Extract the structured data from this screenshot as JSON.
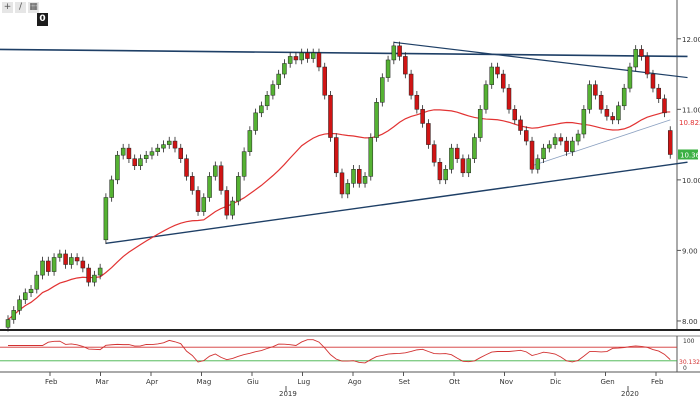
{
  "toolbar": {
    "buttons": [
      {
        "name": "add-icon",
        "glyph": "+"
      },
      {
        "name": "draw-icon",
        "glyph": "/"
      },
      {
        "name": "grid-icon",
        "glyph": "▦"
      }
    ],
    "zoom_badge": "0"
  },
  "chart_data": {
    "type": "candlestick",
    "colors": {
      "up": "#55b233",
      "down": "#d01414",
      "ma": "#e23333",
      "trendline": "#1e3f66",
      "rsi": "#d23232",
      "price_tag": "#3cb043"
    },
    "y_ticks": [
      "12.00",
      "11.00",
      "10.00",
      "9.00",
      "8.00"
    ],
    "ylim": [
      7.9,
      12.55
    ],
    "x_ticks": [
      "Feb",
      "Mar",
      "Apr",
      "Mag",
      "Giu",
      "Lug",
      "Ago",
      "Set",
      "Ott",
      "Nov",
      "Dic",
      "Gen",
      "Feb"
    ],
    "year_labels": [
      "2019",
      "2020"
    ],
    "price_labels": {
      "ma_value": "10.8234",
      "last_price": "10.36"
    },
    "rsi": {
      "ticks": [
        "100",
        "0"
      ],
      "value": "30.1325",
      "upper": 70,
      "lower": 30
    },
    "price_series": [
      {
        "d": 0,
        "o": 7.91,
        "c": 8.02
      },
      {
        "d": 1,
        "o": 8.02,
        "c": 8.15
      },
      {
        "d": 2,
        "o": 8.15,
        "c": 8.3
      },
      {
        "d": 3,
        "o": 8.3,
        "c": 8.4
      },
      {
        "d": 4,
        "o": 8.4,
        "c": 8.45
      },
      {
        "d": 5,
        "o": 8.45,
        "c": 8.65
      },
      {
        "d": 6,
        "o": 8.65,
        "c": 8.85
      },
      {
        "d": 7,
        "o": 8.85,
        "c": 8.7
      },
      {
        "d": 8,
        "o": 8.7,
        "c": 8.9
      },
      {
        "d": 9,
        "o": 8.9,
        "c": 8.95
      },
      {
        "d": 10,
        "o": 8.95,
        "c": 8.8
      },
      {
        "d": 11,
        "o": 8.8,
        "c": 8.9
      },
      {
        "d": 12,
        "o": 8.9,
        "c": 8.85
      },
      {
        "d": 13,
        "o": 8.85,
        "c": 8.75
      },
      {
        "d": 14,
        "o": 8.75,
        "c": 8.55
      },
      {
        "d": 15,
        "o": 8.55,
        "c": 8.65
      },
      {
        "d": 16,
        "o": 8.65,
        "c": 8.75
      },
      {
        "d": 17,
        "o": 9.15,
        "c": 9.75
      },
      {
        "d": 18,
        "o": 9.75,
        "c": 10.0
      },
      {
        "d": 19,
        "o": 10.0,
        "c": 10.35
      },
      {
        "d": 20,
        "o": 10.35,
        "c": 10.45
      },
      {
        "d": 21,
        "o": 10.45,
        "c": 10.3
      },
      {
        "d": 22,
        "o": 10.3,
        "c": 10.2
      },
      {
        "d": 23,
        "o": 10.2,
        "c": 10.3
      },
      {
        "d": 24,
        "o": 10.3,
        "c": 10.35
      },
      {
        "d": 25,
        "o": 10.35,
        "c": 10.4
      },
      {
        "d": 26,
        "o": 10.4,
        "c": 10.45
      },
      {
        "d": 27,
        "o": 10.45,
        "c": 10.5
      },
      {
        "d": 28,
        "o": 10.5,
        "c": 10.55
      },
      {
        "d": 29,
        "o": 10.55,
        "c": 10.45
      },
      {
        "d": 30,
        "o": 10.45,
        "c": 10.3
      },
      {
        "d": 31,
        "o": 10.3,
        "c": 10.05
      },
      {
        "d": 32,
        "o": 10.05,
        "c": 9.85
      },
      {
        "d": 33,
        "o": 9.85,
        "c": 9.55
      },
      {
        "d": 34,
        "o": 9.55,
        "c": 9.75
      },
      {
        "d": 35,
        "o": 9.75,
        "c": 10.05
      },
      {
        "d": 36,
        "o": 10.05,
        "c": 10.2
      },
      {
        "d": 37,
        "o": 10.2,
        "c": 9.85
      },
      {
        "d": 38,
        "o": 9.85,
        "c": 9.5
      },
      {
        "d": 39,
        "o": 9.5,
        "c": 9.7
      },
      {
        "d": 40,
        "o": 9.7,
        "c": 10.05
      },
      {
        "d": 41,
        "o": 10.05,
        "c": 10.4
      },
      {
        "d": 42,
        "o": 10.4,
        "c": 10.7
      },
      {
        "d": 43,
        "o": 10.7,
        "c": 10.95
      },
      {
        "d": 44,
        "o": 10.95,
        "c": 11.05
      },
      {
        "d": 45,
        "o": 11.05,
        "c": 11.2
      },
      {
        "d": 46,
        "o": 11.2,
        "c": 11.35
      },
      {
        "d": 47,
        "o": 11.35,
        "c": 11.5
      },
      {
        "d": 48,
        "o": 11.5,
        "c": 11.65
      },
      {
        "d": 49,
        "o": 11.65,
        "c": 11.75
      },
      {
        "d": 50,
        "o": 11.75,
        "c": 11.7
      },
      {
        "d": 51,
        "o": 11.7,
        "c": 11.8
      },
      {
        "d": 52,
        "o": 11.8,
        "c": 11.72
      },
      {
        "d": 53,
        "o": 11.72,
        "c": 11.8
      },
      {
        "d": 54,
        "o": 11.8,
        "c": 11.6
      },
      {
        "d": 55,
        "o": 11.6,
        "c": 11.2
      },
      {
        "d": 56,
        "o": 11.2,
        "c": 10.6
      },
      {
        "d": 57,
        "o": 10.6,
        "c": 10.1
      },
      {
        "d": 58,
        "o": 10.1,
        "c": 9.8
      },
      {
        "d": 59,
        "o": 9.8,
        "c": 9.95
      },
      {
        "d": 60,
        "o": 9.95,
        "c": 10.15
      },
      {
        "d": 61,
        "o": 10.15,
        "c": 9.95
      },
      {
        "d": 62,
        "o": 9.95,
        "c": 10.05
      },
      {
        "d": 63,
        "o": 10.05,
        "c": 10.6
      },
      {
        "d": 64,
        "o": 10.6,
        "c": 11.1
      },
      {
        "d": 65,
        "o": 11.1,
        "c": 11.45
      },
      {
        "d": 66,
        "o": 11.45,
        "c": 11.7
      },
      {
        "d": 67,
        "o": 11.7,
        "c": 11.9
      },
      {
        "d": 68,
        "o": 11.9,
        "c": 11.75
      },
      {
        "d": 69,
        "o": 11.75,
        "c": 11.5
      },
      {
        "d": 70,
        "o": 11.5,
        "c": 11.2
      },
      {
        "d": 71,
        "o": 11.2,
        "c": 11.0
      },
      {
        "d": 72,
        "o": 11.0,
        "c": 10.8
      },
      {
        "d": 73,
        "o": 10.8,
        "c": 10.5
      },
      {
        "d": 74,
        "o": 10.5,
        "c": 10.25
      },
      {
        "d": 75,
        "o": 10.25,
        "c": 10.0
      },
      {
        "d": 76,
        "o": 10.0,
        "c": 10.15
      },
      {
        "d": 77,
        "o": 10.15,
        "c": 10.45
      },
      {
        "d": 78,
        "o": 10.45,
        "c": 10.3
      },
      {
        "d": 79,
        "o": 10.3,
        "c": 10.1
      },
      {
        "d": 80,
        "o": 10.1,
        "c": 10.3
      },
      {
        "d": 81,
        "o": 10.3,
        "c": 10.6
      },
      {
        "d": 82,
        "o": 10.6,
        "c": 11.0
      },
      {
        "d": 83,
        "o": 11.0,
        "c": 11.35
      },
      {
        "d": 84,
        "o": 11.35,
        "c": 11.6
      },
      {
        "d": 85,
        "o": 11.6,
        "c": 11.5
      },
      {
        "d": 86,
        "o": 11.5,
        "c": 11.3
      },
      {
        "d": 87,
        "o": 11.3,
        "c": 11.0
      },
      {
        "d": 88,
        "o": 11.0,
        "c": 10.85
      },
      {
        "d": 89,
        "o": 10.85,
        "c": 10.7
      },
      {
        "d": 90,
        "o": 10.7,
        "c": 10.55
      },
      {
        "d": 91,
        "o": 10.55,
        "c": 10.15
      },
      {
        "d": 92,
        "o": 10.15,
        "c": 10.3
      },
      {
        "d": 93,
        "o": 10.3,
        "c": 10.45
      },
      {
        "d": 94,
        "o": 10.45,
        "c": 10.5
      },
      {
        "d": 95,
        "o": 10.5,
        "c": 10.6
      },
      {
        "d": 96,
        "o": 10.6,
        "c": 10.55
      },
      {
        "d": 97,
        "o": 10.55,
        "c": 10.4
      },
      {
        "d": 98,
        "o": 10.4,
        "c": 10.55
      },
      {
        "d": 99,
        "o": 10.55,
        "c": 10.65
      },
      {
        "d": 100,
        "o": 10.65,
        "c": 11.0
      },
      {
        "d": 101,
        "o": 11.0,
        "c": 11.35
      },
      {
        "d": 102,
        "o": 11.35,
        "c": 11.2
      },
      {
        "d": 103,
        "o": 11.2,
        "c": 11.0
      },
      {
        "d": 104,
        "o": 11.0,
        "c": 10.9
      },
      {
        "d": 105,
        "o": 10.9,
        "c": 10.85
      },
      {
        "d": 106,
        "o": 10.85,
        "c": 11.05
      },
      {
        "d": 107,
        "o": 11.05,
        "c": 11.3
      },
      {
        "d": 108,
        "o": 11.3,
        "c": 11.6
      },
      {
        "d": 109,
        "o": 11.6,
        "c": 11.85
      },
      {
        "d": 110,
        "o": 11.85,
        "c": 11.75
      },
      {
        "d": 111,
        "o": 11.75,
        "c": 11.5
      },
      {
        "d": 112,
        "o": 11.5,
        "c": 11.3
      },
      {
        "d": 113,
        "o": 11.3,
        "c": 11.15
      },
      {
        "d": 114,
        "o": 11.15,
        "c": 10.95
      },
      {
        "d": 115,
        "o": 10.7,
        "c": 10.36
      }
    ]
  }
}
